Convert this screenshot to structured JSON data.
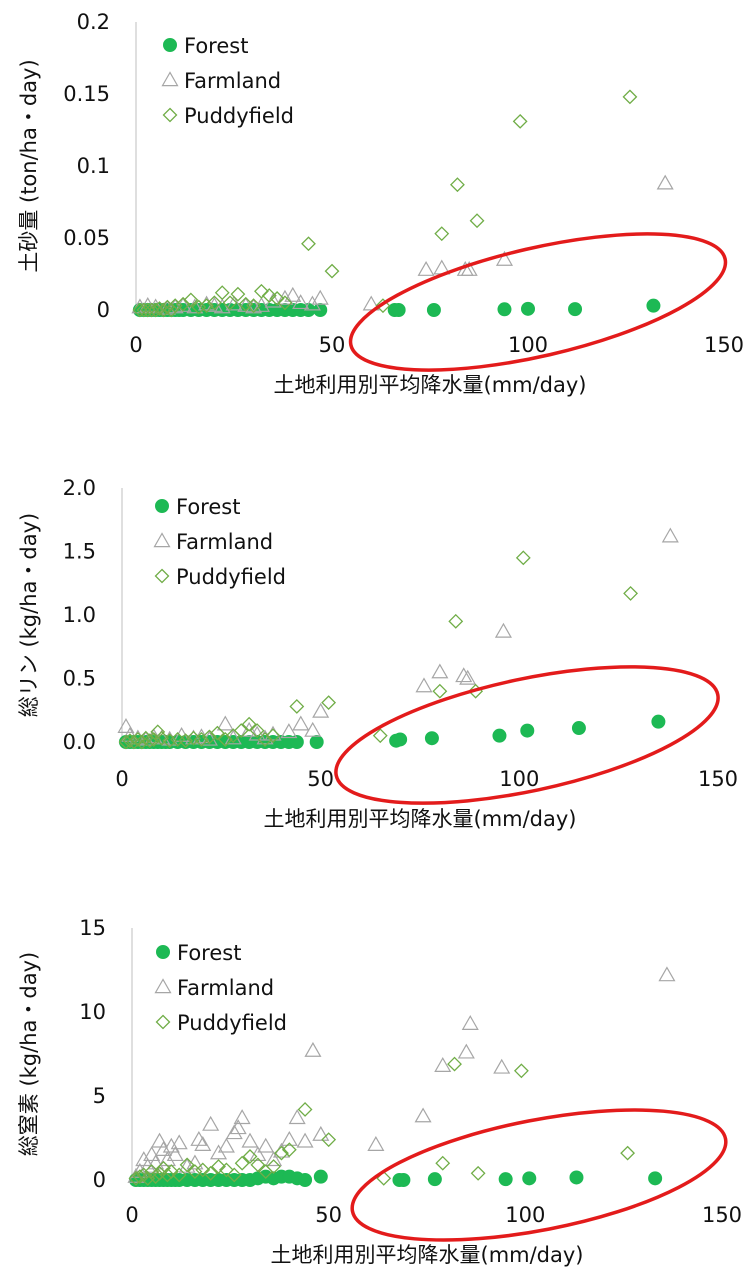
{
  "chart_data": [
    {
      "type": "scatter",
      "xlabel": "土地利用別平均降水量(mm/day)",
      "ylabel": "土砂量 (ton/ha・day)",
      "xlim": [
        0,
        150
      ],
      "ylim": [
        0,
        0.2
      ],
      "xticks": [
        "0",
        "50",
        "100",
        "150"
      ],
      "yticks": [
        "0",
        "0.05",
        "0.1",
        "0.15",
        "0.2"
      ],
      "legend": "top-left",
      "grid": false,
      "colors": {
        "Forest": "#1db954",
        "Farmland": "#a6a6a6",
        "Puddyfield": "#70ad47"
      },
      "series": [
        {
          "name": "Forest",
          "marker": "circle",
          "x": [
            1,
            2,
            3,
            4,
            5,
            6,
            7,
            8,
            9,
            10,
            11,
            12,
            14,
            16,
            18,
            20,
            22,
            24,
            26,
            28,
            30,
            32,
            34,
            36,
            38,
            40,
            42,
            44,
            47,
            66,
            67,
            76,
            94,
            100,
            112,
            132
          ],
          "y": [
            0,
            0,
            0,
            0,
            0,
            0,
            0,
            0,
            0,
            0,
            0,
            0,
            0,
            0,
            0,
            0,
            0,
            0,
            0,
            0,
            0,
            0,
            0,
            0,
            0,
            0,
            0,
            0,
            0,
            0,
            0,
            0,
            0.0005,
            0.0008,
            0.0006,
            0.003
          ]
        },
        {
          "name": "Farmland",
          "marker": "triangle",
          "x": [
            1,
            3,
            5,
            8,
            10,
            12,
            15,
            18,
            20,
            22,
            25,
            28,
            30,
            32,
            35,
            38,
            40,
            42,
            45,
            47,
            60,
            74,
            78,
            84,
            85,
            94,
            135
          ],
          "y": [
            0.002,
            0.003,
            0.002,
            0.001,
            0.002,
            0.003,
            0.002,
            0.004,
            0.003,
            0.002,
            0.004,
            0.003,
            0.002,
            0.003,
            0.006,
            0.008,
            0.01,
            0.005,
            0.004,
            0.008,
            0.004,
            0.028,
            0.029,
            0.028,
            0.028,
            0.035,
            0.088
          ]
        },
        {
          "name": "Puddyfield",
          "marker": "diamond",
          "x": [
            1,
            2,
            3,
            4,
            5,
            6,
            7,
            8,
            9,
            10,
            12,
            14,
            16,
            18,
            20,
            22,
            24,
            26,
            28,
            30,
            32,
            34,
            36,
            38,
            44,
            50,
            63,
            78,
            82,
            87,
            98,
            126
          ],
          "y": [
            0,
            0,
            0,
            0,
            0,
            0.001,
            0,
            0.002,
            0,
            0.003,
            0.004,
            0.007,
            0.002,
            0.003,
            0.005,
            0.012,
            0.005,
            0.011,
            0.004,
            0.003,
            0.013,
            0.01,
            0.008,
            0.005,
            0.046,
            0.027,
            0.003,
            0.053,
            0.087,
            0.062,
            0.131,
            0.148
          ]
        }
      ]
    },
    {
      "type": "scatter",
      "xlabel": "土地利用別平均降水量(mm/day)",
      "ylabel": "総リン (kg/ha・day)",
      "xlim": [
        0,
        150
      ],
      "ylim": [
        0,
        2.0
      ],
      "xticks": [
        "0",
        "50",
        "100",
        "150"
      ],
      "yticks": [
        "0.0",
        "0.5",
        "1.0",
        "1.5",
        "2.0"
      ],
      "legend": "top-left",
      "grid": false,
      "colors": {
        "Forest": "#1db954",
        "Farmland": "#a6a6a6",
        "Puddyfield": "#70ad47"
      },
      "series": [
        {
          "name": "Forest",
          "marker": "circle",
          "x": [
            1,
            2,
            3,
            4,
            5,
            6,
            7,
            8,
            9,
            10,
            11,
            12,
            14,
            16,
            18,
            20,
            22,
            24,
            26,
            28,
            30,
            32,
            34,
            36,
            38,
            40,
            42,
            44,
            49,
            69,
            70,
            78,
            95,
            102,
            115,
            135
          ],
          "y": [
            0,
            0,
            0,
            0,
            0,
            0,
            0,
            0,
            0,
            0,
            0,
            0,
            0,
            0,
            0,
            0,
            0,
            0,
            0,
            0,
            0,
            0,
            0,
            0,
            0,
            0,
            0,
            0,
            0,
            0.01,
            0.02,
            0.03,
            0.05,
            0.09,
            0.11,
            0.16
          ]
        },
        {
          "name": "Farmland",
          "marker": "triangle",
          "x": [
            1,
            2,
            4,
            6,
            8,
            10,
            12,
            15,
            18,
            20,
            22,
            26,
            28,
            32,
            34,
            36,
            38,
            42,
            45,
            48,
            50,
            76,
            80,
            86,
            87,
            96,
            138
          ],
          "y": [
            0.12,
            0.05,
            0.03,
            0.02,
            0.04,
            0.03,
            0.02,
            0.05,
            0.03,
            0.04,
            0.02,
            0.14,
            0.03,
            0.09,
            0.06,
            0.03,
            0.06,
            0.08,
            0.14,
            0.09,
            0.24,
            0.44,
            0.55,
            0.52,
            0.5,
            0.87,
            1.62
          ]
        },
        {
          "name": "Puddyfield",
          "marker": "diamond",
          "x": [
            1,
            2,
            3,
            4,
            5,
            6,
            7,
            8,
            9,
            10,
            12,
            14,
            16,
            18,
            20,
            22,
            24,
            26,
            28,
            30,
            32,
            34,
            36,
            38,
            44,
            52,
            65,
            80,
            84,
            89,
            101,
            128
          ],
          "y": [
            0,
            0.01,
            0,
            0.02,
            0,
            0.03,
            0.01,
            0.02,
            0.08,
            0.03,
            0.01,
            0.02,
            0.01,
            0.03,
            0.02,
            0.04,
            0.07,
            0.02,
            0.05,
            0.09,
            0.14,
            0.09,
            0.02,
            0.05,
            0.28,
            0.31,
            0.05,
            0.4,
            0.95,
            0.4,
            1.45,
            1.17
          ]
        }
      ]
    },
    {
      "type": "scatter",
      "xlabel": "土地利用別平均降水量(mm/day)",
      "ylabel": "総窒素 (kg/ha・day)",
      "xlim": [
        0,
        150
      ],
      "ylim": [
        0,
        15
      ],
      "xticks": [
        "0",
        "50",
        "100",
        "150"
      ],
      "yticks": [
        "0",
        "5",
        "10",
        "15"
      ],
      "legend": "top-left",
      "grid": false,
      "colors": {
        "Forest": "#1db954",
        "Farmland": "#a6a6a6",
        "Puddyfield": "#70ad47"
      },
      "series": [
        {
          "name": "Forest",
          "marker": "circle",
          "x": [
            1,
            2,
            3,
            4,
            5,
            6,
            7,
            8,
            9,
            10,
            11,
            12,
            14,
            16,
            18,
            20,
            22,
            24,
            26,
            28,
            30,
            32,
            34,
            36,
            38,
            40,
            42,
            44,
            48,
            68,
            69,
            77,
            95,
            101,
            113,
            133
          ],
          "y": [
            0,
            0,
            0,
            0,
            0,
            0,
            0,
            0,
            0,
            0,
            0,
            0,
            0,
            0,
            0,
            0,
            0,
            0,
            0,
            0,
            0,
            0.1,
            0.2,
            0.1,
            0.2,
            0.2,
            0.1,
            0,
            0.2,
            0,
            0,
            0.05,
            0.05,
            0.1,
            0.15,
            0.1
          ]
        },
        {
          "name": "Farmland",
          "marker": "triangle",
          "x": [
            1,
            2,
            3,
            4,
            5,
            6,
            7,
            8,
            9,
            10,
            11,
            12,
            14,
            16,
            17,
            18,
            20,
            22,
            24,
            26,
            27,
            28,
            30,
            32,
            34,
            36,
            38,
            40,
            42,
            44,
            46,
            48,
            62,
            74,
            79,
            85,
            86,
            94,
            136
          ],
          "y": [
            0.2,
            0.5,
            1.2,
            0.8,
            1.5,
            1.0,
            2.3,
            1.8,
            1.2,
            2.0,
            1.5,
            2.2,
            0.8,
            1.0,
            2.4,
            2.1,
            3.3,
            1.6,
            2.0,
            2.8,
            3.1,
            3.7,
            2.3,
            1.5,
            2.0,
            1.2,
            1.7,
            2.4,
            3.7,
            2.3,
            7.7,
            2.7,
            2.1,
            3.8,
            6.8,
            7.6,
            9.3,
            6.7,
            12.2
          ]
        },
        {
          "name": "Puddyfield",
          "marker": "diamond",
          "x": [
            1,
            2,
            3,
            4,
            5,
            6,
            7,
            8,
            9,
            10,
            12,
            14,
            16,
            18,
            20,
            22,
            24,
            26,
            28,
            30,
            32,
            34,
            36,
            38,
            40,
            44,
            50,
            64,
            79,
            82,
            88,
            99,
            126
          ],
          "y": [
            0.1,
            0.2,
            0.3,
            0.1,
            0.5,
            0.2,
            0.4,
            0.7,
            0.3,
            0.5,
            0.3,
            0.9,
            0.5,
            0.6,
            0.4,
            0.8,
            0.6,
            0.3,
            1.0,
            1.4,
            0.9,
            0.5,
            0.8,
            1.6,
            1.8,
            4.2,
            2.4,
            0.1,
            1.0,
            6.9,
            0.4,
            6.5,
            1.6
          ]
        }
      ]
    }
  ]
}
